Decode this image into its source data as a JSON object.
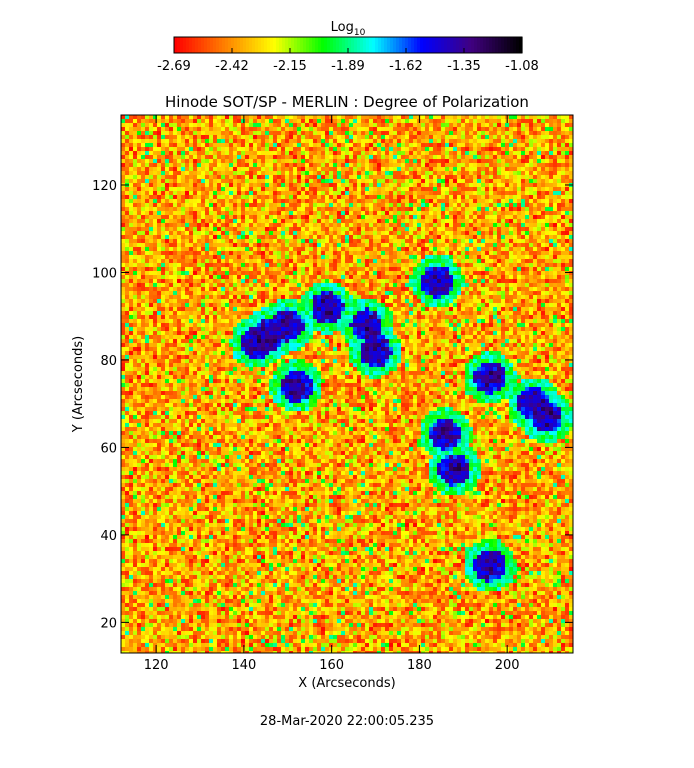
{
  "chart_data": {
    "type": "heatmap",
    "title": "Hinode SOT/SP - MERLIN : Degree of Polarization",
    "xlabel": "X (Arcseconds)",
    "ylabel": "Y (Arcseconds)",
    "xlim": [
      112,
      215
    ],
    "ylim": [
      13,
      136
    ],
    "x_ticks": [
      "120",
      "140",
      "160",
      "180",
      "200"
    ],
    "y_ticks": [
      "20",
      "40",
      "60",
      "80",
      "100",
      "120"
    ],
    "colorbar": {
      "label": "Log",
      "label_subscript": "10",
      "range": [
        -2.69,
        -1.08
      ],
      "ticks": [
        "-2.69",
        "-2.42",
        "-2.15",
        "-1.89",
        "-1.62",
        "-1.35",
        "-1.08"
      ],
      "colors": [
        "#ff0000",
        "#ff8000",
        "#ffff00",
        "#00ff00",
        "#00ffff",
        "#0000ff",
        "#400080",
        "#000000"
      ]
    },
    "timestamp": "28-Mar-2020 22:00:05.235",
    "strong_patches": [
      {
        "x": 146,
        "y": 86
      },
      {
        "x": 150,
        "y": 88
      },
      {
        "x": 143,
        "y": 84
      },
      {
        "x": 170,
        "y": 82
      },
      {
        "x": 168,
        "y": 88
      },
      {
        "x": 184,
        "y": 98
      },
      {
        "x": 196,
        "y": 76
      },
      {
        "x": 206,
        "y": 70
      },
      {
        "x": 209,
        "y": 67
      },
      {
        "x": 186,
        "y": 63
      },
      {
        "x": 152,
        "y": 74
      },
      {
        "x": 196,
        "y": 33
      },
      {
        "x": 159,
        "y": 92
      },
      {
        "x": 188,
        "y": 55
      }
    ]
  }
}
